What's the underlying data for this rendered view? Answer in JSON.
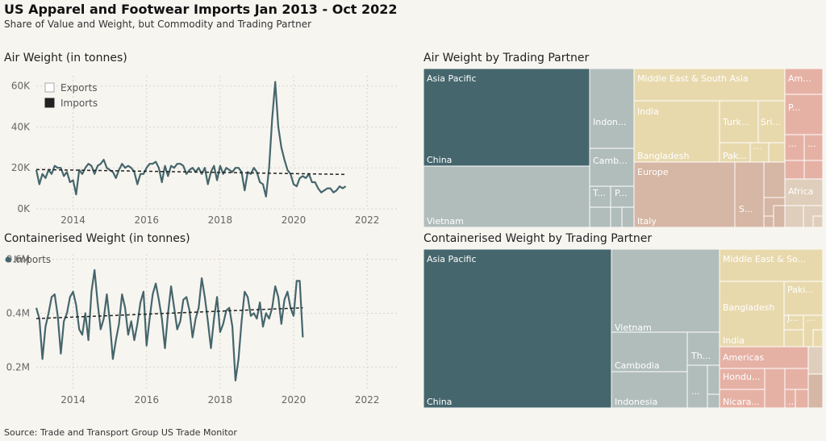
{
  "title": "US Apparel and Footwear Imports Jan 2013 - Oct 2022",
  "subtitle": "Share of Value and Weight, but Commodity and Trading Partner",
  "source": "Source: Trade and Transport Group US Trade Monitor",
  "colors": {
    "asia_dark": "#45666c",
    "asia_light": "#b1bdbb",
    "middle_east": "#e8d9ad",
    "europe": "#d6b6a4",
    "americas": "#e6b1a5",
    "africa": "#dfcebb",
    "line": "#45666c",
    "trend": "#222222"
  },
  "chart_data": [
    {
      "type": "line",
      "title": "Air Weight (in tonnes)",
      "legend": [
        "Exports",
        "Imports"
      ],
      "legend_placement": "top-left",
      "x_ticks": [
        2014,
        2016,
        2018,
        2020,
        2022
      ],
      "y_ticks": [
        "0K",
        "20K",
        "40K",
        "60K"
      ],
      "ylim": [
        0,
        65000
      ],
      "xlim": [
        2013.0,
        2022.83
      ],
      "series": [
        {
          "name": "Imports",
          "x_start": "2013-01",
          "values": [
            19000,
            12000,
            17000,
            15000,
            19000,
            17000,
            21000,
            20000,
            20000,
            16000,
            18000,
            13000,
            14000,
            7000,
            19000,
            17000,
            20000,
            22000,
            21000,
            17000,
            21000,
            22000,
            24000,
            20000,
            19000,
            18000,
            15000,
            19000,
            22000,
            20000,
            21000,
            20000,
            18000,
            12000,
            17000,
            17000,
            20000,
            22000,
            22000,
            23000,
            20000,
            13000,
            21000,
            16000,
            21000,
            20000,
            22000,
            22000,
            21000,
            17000,
            19000,
            20000,
            18000,
            20000,
            17000,
            20000,
            12000,
            18000,
            21000,
            14000,
            21000,
            17000,
            20000,
            19000,
            18000,
            20000,
            20000,
            18000,
            9000,
            18000,
            17000,
            20000,
            18000,
            13000,
            12000,
            6000,
            20000,
            44000,
            62000,
            40000,
            30000,
            24000,
            19000,
            17000,
            12000,
            11000,
            15000,
            16000,
            15000,
            17000,
            13000,
            13000,
            10000,
            8000,
            9000,
            10000,
            10000,
            8000,
            9000,
            11000,
            10000,
            11000
          ],
          "trend_start": 19200,
          "trend_end": 16800
        }
      ]
    },
    {
      "type": "line",
      "title": "Containerised Weight (in tonnes)",
      "legend": [
        "Imports"
      ],
      "legend_placement": "top-left",
      "x_ticks": [
        2014,
        2016,
        2018,
        2020,
        2022
      ],
      "y_ticks": [
        "0.2M",
        "0.4M",
        "0.6M"
      ],
      "ylim": [
        0.12,
        0.62
      ],
      "xlim": [
        2013.0,
        2022.83
      ],
      "series": [
        {
          "name": "Imports",
          "x_start": "2013-01",
          "values": [
            0.42,
            0.38,
            0.23,
            0.35,
            0.4,
            0.46,
            0.47,
            0.39,
            0.25,
            0.37,
            0.4,
            0.46,
            0.48,
            0.43,
            0.34,
            0.32,
            0.4,
            0.3,
            0.48,
            0.56,
            0.44,
            0.34,
            0.38,
            0.47,
            0.37,
            0.23,
            0.3,
            0.36,
            0.47,
            0.42,
            0.32,
            0.37,
            0.3,
            0.36,
            0.44,
            0.48,
            0.28,
            0.38,
            0.47,
            0.51,
            0.45,
            0.38,
            0.27,
            0.4,
            0.5,
            0.42,
            0.34,
            0.37,
            0.45,
            0.46,
            0.41,
            0.31,
            0.38,
            0.42,
            0.53,
            0.46,
            0.37,
            0.27,
            0.38,
            0.46,
            0.33,
            0.36,
            0.41,
            0.42,
            0.35,
            0.15,
            0.23,
            0.37,
            0.48,
            0.46,
            0.39,
            0.4,
            0.38,
            0.44,
            0.35,
            0.4,
            0.38,
            0.42,
            0.5,
            0.46,
            0.36,
            0.45,
            0.48,
            0.42,
            0.39,
            0.52,
            0.52,
            0.31
          ],
          "trend_start": 0.38,
          "trend_end": 0.42
        }
      ]
    },
    {
      "type": "treemap",
      "title": "Air Weight by Trading Partner",
      "cells": [
        {
          "label": "Asia Pacific",
          "label2": "China",
          "region": "asia_dark"
        },
        {
          "label": "Vietnam",
          "region": "asia_light"
        },
        {
          "label": "Indon...",
          "region": "asia_light"
        },
        {
          "label": "Camb...",
          "region": "asia_light"
        },
        {
          "label": "T...",
          "region": "asia_light"
        },
        {
          "label": "P...",
          "region": "asia_light"
        },
        {
          "label": "Middle East & South Asia",
          "region": "middle_east"
        },
        {
          "label": "India",
          "region": "middle_east"
        },
        {
          "label": "Bangladesh",
          "region": "middle_east"
        },
        {
          "label": "Turk...",
          "region": "middle_east"
        },
        {
          "label": "Sri...",
          "region": "middle_east"
        },
        {
          "label": "Pak...",
          "region": "middle_east"
        },
        {
          "label": "...",
          "region": "middle_east"
        },
        {
          "label": "Europe",
          "label2": "Italy",
          "region": "europe"
        },
        {
          "label": "S...",
          "region": "europe"
        },
        {
          "label": "Am...",
          "region": "americas"
        },
        {
          "label": "P...",
          "region": "americas"
        },
        {
          "label": "...",
          "region": "americas"
        },
        {
          "label": "...",
          "region": "americas"
        },
        {
          "label": "Africa",
          "region": "africa"
        }
      ]
    },
    {
      "type": "treemap",
      "title": "Containerised Weight by Trading Partner",
      "cells": [
        {
          "label": "Asia Pacific",
          "label2": "China",
          "region": "asia_dark"
        },
        {
          "label": "Vietnam",
          "region": "asia_light"
        },
        {
          "label": "Cambodia",
          "region": "asia_light"
        },
        {
          "label": "Indonesia",
          "region": "asia_light"
        },
        {
          "label": "Th...",
          "region": "asia_light"
        },
        {
          "label": "...",
          "region": "asia_light"
        },
        {
          "label": "Middle East & So...",
          "region": "middle_east"
        },
        {
          "label": "Bangladesh",
          "region": "middle_east"
        },
        {
          "label": "India",
          "region": "middle_east"
        },
        {
          "label": "Paki...",
          "region": "middle_east"
        },
        {
          "label": "J...",
          "region": "middle_east"
        },
        {
          "label": "...",
          "region": "middle_east"
        },
        {
          "label": "Americas",
          "region": "americas"
        },
        {
          "label": "Hondu...",
          "region": "americas"
        },
        {
          "label": "Nicara...",
          "region": "americas"
        },
        {
          "label": "...",
          "region": "americas"
        }
      ]
    }
  ]
}
